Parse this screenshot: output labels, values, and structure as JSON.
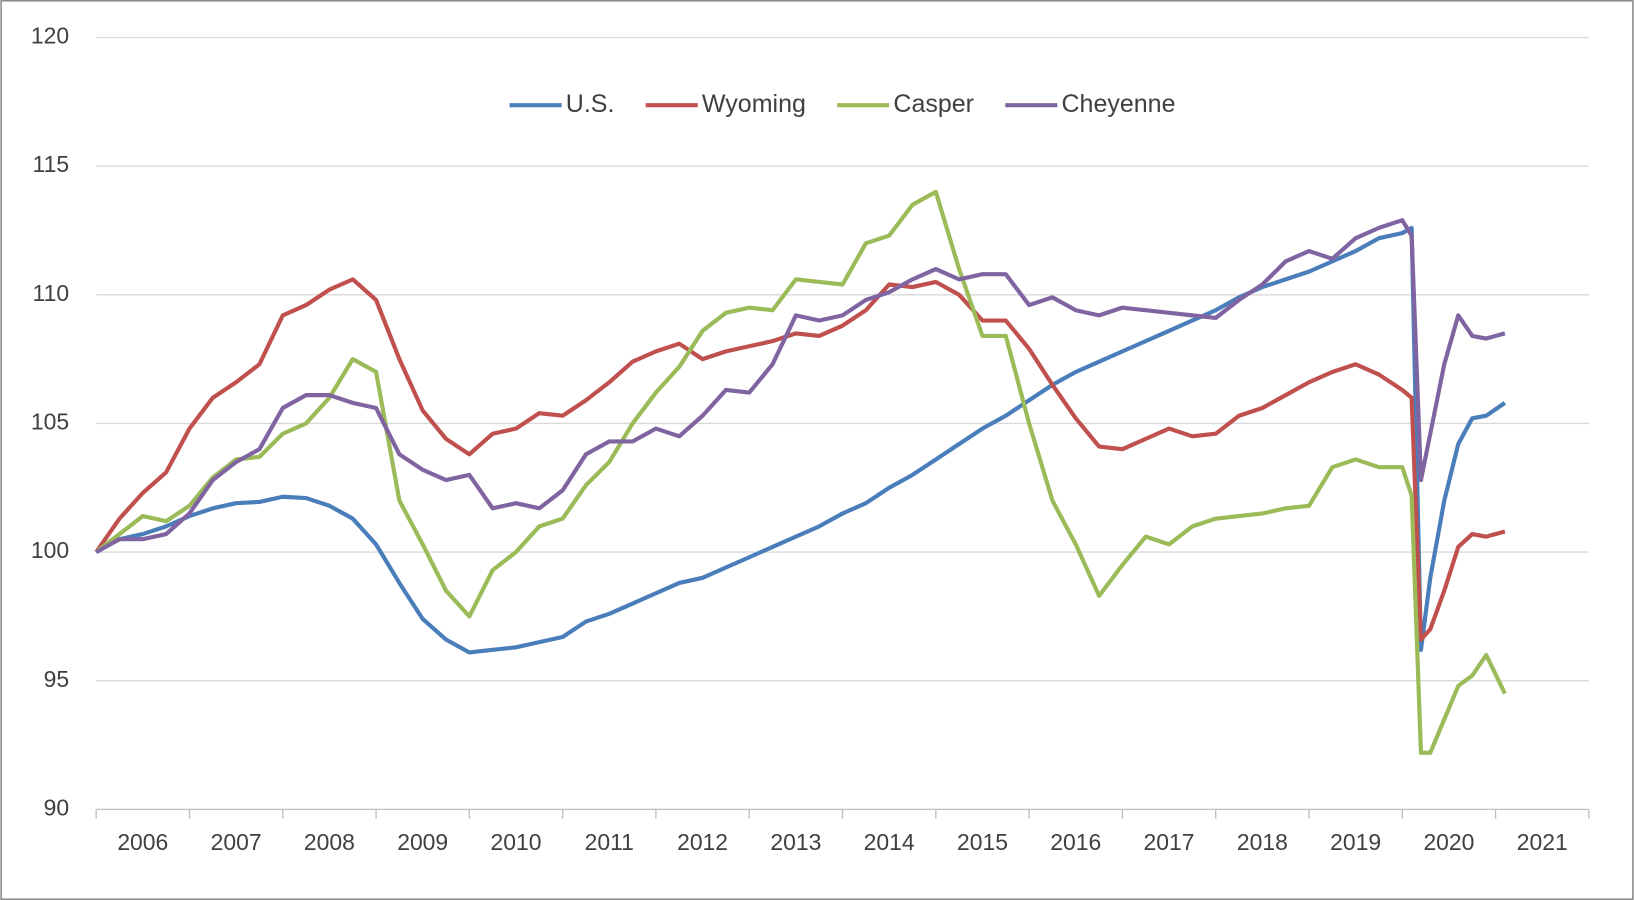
{
  "chart_data": {
    "type": "line",
    "x": [
      2006,
      2006.25,
      2006.5,
      2006.75,
      2007,
      2007.25,
      2007.5,
      2007.75,
      2008,
      2008.25,
      2008.5,
      2008.75,
      2009,
      2009.25,
      2009.5,
      2009.75,
      2010,
      2010.25,
      2010.5,
      2010.75,
      2011,
      2011.25,
      2011.5,
      2011.75,
      2012,
      2012.25,
      2012.5,
      2012.75,
      2013,
      2013.25,
      2013.5,
      2013.75,
      2014,
      2014.25,
      2014.5,
      2014.75,
      2015,
      2015.25,
      2015.5,
      2015.75,
      2016,
      2016.25,
      2016.5,
      2016.75,
      2017,
      2017.25,
      2017.5,
      2017.75,
      2018,
      2018.25,
      2018.5,
      2018.75,
      2019,
      2019.25,
      2019.5,
      2019.75,
      2020,
      2020.1,
      2020.2,
      2020.3,
      2020.45,
      2020.6,
      2020.75,
      2020.9,
      2021.1
    ],
    "series": [
      {
        "name": "U.S.",
        "color": "#4a7ebb",
        "values": [
          100,
          100.5,
          100.7,
          101.0,
          101.4,
          101.7,
          101.9,
          101.95,
          102.15,
          102.1,
          101.8,
          101.3,
          100.3,
          98.8,
          97.4,
          96.6,
          96.1,
          96.2,
          96.3,
          96.5,
          96.7,
          97.3,
          97.6,
          98.0,
          98.4,
          98.8,
          99.0,
          99.4,
          99.8,
          100.2,
          100.6,
          101.0,
          101.5,
          101.9,
          102.5,
          103.0,
          103.6,
          104.2,
          104.8,
          105.3,
          105.9,
          106.5,
          107.0,
          107.4,
          107.8,
          108.2,
          108.6,
          109.0,
          109.4,
          109.9,
          110.3,
          110.6,
          110.9,
          111.3,
          111.7,
          112.2,
          112.4,
          112.6,
          96.2,
          99.0,
          102.0,
          104.2,
          105.2,
          105.3,
          105.8
        ]
      },
      {
        "name": "Wyoming",
        "color": "#c0504d",
        "values": [
          100,
          101.3,
          102.3,
          103.1,
          104.8,
          106.0,
          106.6,
          107.3,
          109.2,
          109.6,
          110.2,
          110.6,
          109.8,
          107.5,
          105.5,
          104.4,
          103.8,
          104.6,
          104.8,
          105.4,
          105.3,
          105.9,
          106.6,
          107.4,
          107.8,
          108.1,
          107.5,
          107.8,
          108.0,
          108.2,
          108.5,
          108.4,
          108.8,
          109.4,
          110.4,
          110.3,
          110.5,
          110.0,
          109.0,
          109.0,
          107.9,
          106.5,
          105.2,
          104.1,
          104.0,
          104.4,
          104.8,
          104.5,
          104.6,
          105.3,
          105.6,
          106.1,
          106.6,
          107.0,
          107.3,
          106.9,
          106.3,
          106.0,
          96.6,
          97.0,
          98.5,
          100.2,
          100.7,
          100.6,
          100.8
        ]
      },
      {
        "name": "Casper",
        "color": "#9bbb59",
        "values": [
          100,
          100.7,
          101.4,
          101.2,
          101.8,
          102.9,
          103.6,
          103.7,
          104.6,
          105.0,
          106.0,
          107.5,
          107.0,
          102.0,
          100.3,
          98.5,
          97.5,
          99.3,
          100.0,
          101.0,
          101.3,
          102.6,
          103.5,
          105.0,
          106.2,
          107.2,
          108.6,
          109.3,
          109.5,
          109.4,
          110.6,
          110.5,
          110.4,
          112.0,
          112.3,
          113.5,
          114.0,
          111.0,
          108.4,
          108.4,
          105.0,
          102.0,
          100.3,
          98.3,
          99.5,
          100.6,
          100.3,
          101.0,
          101.3,
          101.4,
          101.5,
          101.7,
          101.8,
          103.3,
          103.6,
          103.3,
          103.3,
          102.2,
          92.2,
          92.2,
          93.5,
          94.8,
          95.2,
          96.0,
          94.5
        ]
      },
      {
        "name": "Cheyenne",
        "color": "#8064a2",
        "values": [
          100,
          100.5,
          100.5,
          100.7,
          101.5,
          102.8,
          103.5,
          104.0,
          105.6,
          106.1,
          106.1,
          105.8,
          105.6,
          103.8,
          103.2,
          102.8,
          103.0,
          101.7,
          101.9,
          101.7,
          102.4,
          103.8,
          104.3,
          104.3,
          104.8,
          104.5,
          105.3,
          106.3,
          106.2,
          107.3,
          109.2,
          109.0,
          109.2,
          109.8,
          110.1,
          110.6,
          111.0,
          110.6,
          110.8,
          110.8,
          109.6,
          109.9,
          109.4,
          109.2,
          109.5,
          109.4,
          109.3,
          109.2,
          109.1,
          109.8,
          110.4,
          111.3,
          111.7,
          111.4,
          112.2,
          112.6,
          112.9,
          112.3,
          102.8,
          104.6,
          107.3,
          109.2,
          108.4,
          108.3,
          108.5
        ]
      }
    ],
    "xlim": [
      2006,
      2022
    ],
    "xticks": [
      2006,
      2007,
      2008,
      2009,
      2010,
      2011,
      2012,
      2013,
      2014,
      2015,
      2016,
      2017,
      2018,
      2019,
      2020,
      2021
    ],
    "ylim": [
      90,
      120
    ],
    "yticks": [
      90,
      95,
      100,
      105,
      110,
      115,
      120
    ],
    "grid": true,
    "legend": "top"
  }
}
